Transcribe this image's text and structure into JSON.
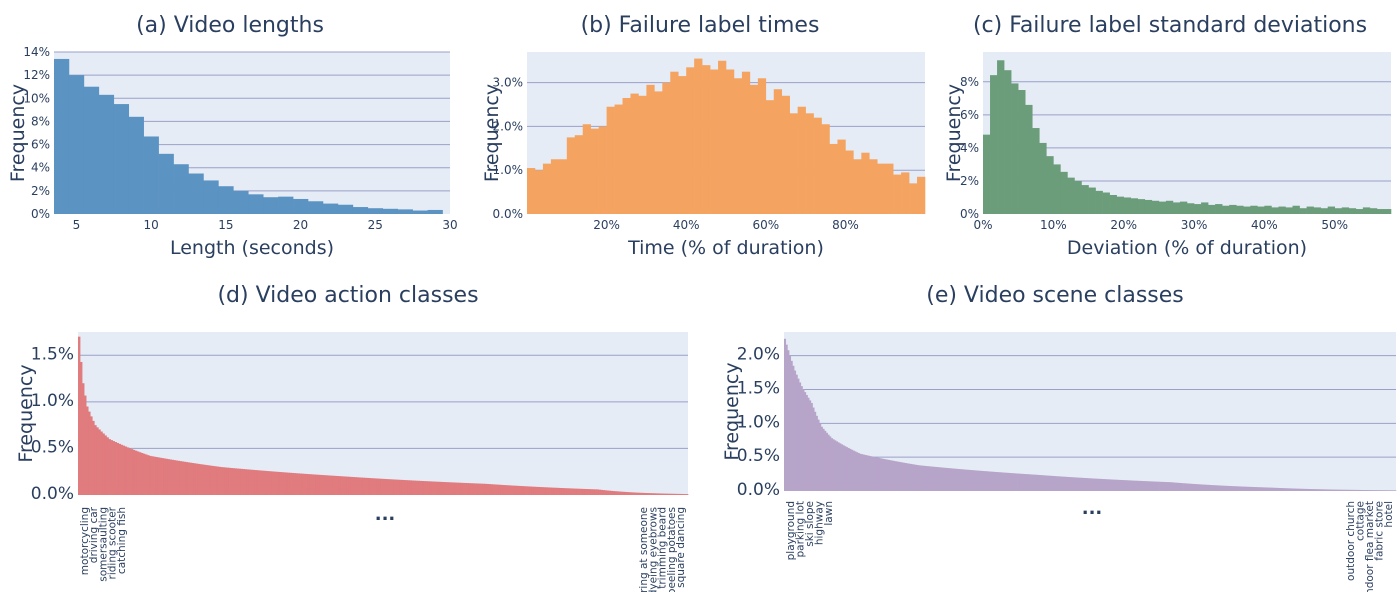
{
  "chart_data": [
    {
      "id": "a",
      "type": "bar",
      "title": "(a) Video lengths",
      "xlabel": "Length (seconds)",
      "ylabel": "Frequency",
      "xlim": [
        3.5,
        30
      ],
      "ylim": [
        0,
        14
      ],
      "xticks": [
        5,
        10,
        15,
        20,
        25,
        30
      ],
      "yticks": [
        0,
        2,
        4,
        6,
        8,
        10,
        12,
        14
      ],
      "ytick_suffix": "%",
      "color": "#5b93c3",
      "bin_start": 3.5,
      "bin_width": 1,
      "values": [
        13.4,
        12.0,
        11.0,
        10.3,
        9.5,
        8.4,
        6.7,
        5.2,
        4.3,
        3.5,
        2.9,
        2.4,
        2.0,
        1.7,
        1.45,
        1.5,
        1.3,
        1.1,
        0.9,
        0.8,
        0.6,
        0.5,
        0.45,
        0.4,
        0.3,
        0.35
      ]
    },
    {
      "id": "b",
      "type": "bar",
      "title": "(b) Failure label times",
      "xlabel": "Time (% of duration)",
      "ylabel": "Frequency",
      "xlim": [
        0,
        100
      ],
      "ylim": [
        0,
        3.7
      ],
      "xticks": [
        20,
        40,
        60,
        80
      ],
      "xtick_suffix": "%",
      "yticks": [
        0,
        1,
        2,
        3
      ],
      "ytick_suffix": "%",
      "ytick_decimals": 1,
      "color": "#f4a460",
      "bin_start": 0,
      "bin_width": 2,
      "values": [
        1.05,
        1.0,
        1.15,
        1.25,
        1.25,
        1.75,
        1.8,
        2.05,
        1.95,
        2.0,
        2.45,
        2.5,
        2.65,
        2.75,
        2.7,
        2.95,
        2.8,
        3.0,
        3.25,
        3.15,
        3.35,
        3.55,
        3.4,
        3.3,
        3.5,
        3.3,
        3.1,
        3.25,
        2.95,
        3.1,
        2.6,
        2.85,
        2.7,
        2.3,
        2.45,
        2.3,
        2.2,
        2.05,
        1.6,
        1.7,
        1.45,
        1.25,
        1.4,
        1.25,
        1.15,
        1.15,
        0.9,
        0.95,
        0.7,
        0.85
      ]
    },
    {
      "id": "c",
      "type": "bar",
      "title": "(c) Failure label standard deviations",
      "xlabel": "Deviation (% of duration)",
      "ylabel": "Frequency",
      "xlim": [
        0,
        58
      ],
      "ylim": [
        0,
        9.8
      ],
      "xticks": [
        0,
        10,
        20,
        30,
        40,
        50
      ],
      "xtick_suffix": "%",
      "yticks": [
        0,
        2,
        4,
        6,
        8
      ],
      "ytick_suffix": "%",
      "color": "#6b9d7a",
      "bin_start": 0,
      "bin_width": 1,
      "values": [
        4.8,
        8.4,
        9.3,
        8.7,
        7.9,
        7.5,
        6.6,
        5.2,
        4.3,
        3.5,
        3.0,
        2.55,
        2.2,
        2.0,
        1.75,
        1.6,
        1.4,
        1.3,
        1.15,
        1.05,
        1.0,
        0.95,
        0.9,
        0.85,
        0.8,
        0.75,
        0.8,
        0.7,
        0.75,
        0.65,
        0.6,
        0.7,
        0.55,
        0.6,
        0.5,
        0.55,
        0.5,
        0.45,
        0.5,
        0.45,
        0.5,
        0.4,
        0.45,
        0.4,
        0.5,
        0.35,
        0.45,
        0.4,
        0.35,
        0.45,
        0.35,
        0.4,
        0.35,
        0.3,
        0.4,
        0.35,
        0.3,
        0.3
      ]
    },
    {
      "id": "d",
      "type": "bar",
      "title": "(d) Video action classes",
      "ylabel": "Frequency",
      "ylim": [
        0,
        1.75
      ],
      "yticks": [
        0,
        0.5,
        1.0,
        1.5
      ],
      "ytick_suffix": "%",
      "ytick_decimals": 1,
      "color": "#e07b7e",
      "num_classes": 300,
      "max_value": 1.7,
      "curve": [
        [
          0,
          1.7
        ],
        [
          2,
          1.2
        ],
        [
          4,
          0.95
        ],
        [
          8,
          0.75
        ],
        [
          15,
          0.6
        ],
        [
          35,
          0.42
        ],
        [
          70,
          0.3
        ],
        [
          130,
          0.2
        ],
        [
          200,
          0.12
        ],
        [
          255,
          0.06
        ],
        [
          275,
          0.025
        ],
        [
          299,
          0.01
        ]
      ],
      "labels_left": [
        "motorcycling",
        "driving car",
        "somersaulting",
        "riding scooter",
        "catching fish"
      ],
      "labels_right": [
        "staring at someone",
        "dyeing eyebrows",
        "trimming beard",
        "peeling potatoes",
        "square dancing"
      ],
      "ellipsis": "..."
    },
    {
      "id": "e",
      "type": "bar",
      "title": "(e) Video scene classes",
      "ylabel": "Frequency",
      "ylim": [
        0,
        2.35
      ],
      "yticks": [
        0,
        0.5,
        1.0,
        1.5,
        2.0
      ],
      "ytick_suffix": "%",
      "ytick_decimals": 1,
      "color": "#b7a4c9",
      "num_classes": 365,
      "max_value": 2.25,
      "curve": [
        [
          0,
          2.25
        ],
        [
          3,
          2.0
        ],
        [
          6,
          1.78
        ],
        [
          10,
          1.55
        ],
        [
          16,
          1.3
        ],
        [
          22,
          0.95
        ],
        [
          28,
          0.78
        ],
        [
          45,
          0.55
        ],
        [
          80,
          0.38
        ],
        [
          150,
          0.24
        ],
        [
          230,
          0.13
        ],
        [
          290,
          0.05
        ],
        [
          330,
          0.02
        ],
        [
          364,
          0.01
        ]
      ],
      "labels_left": [
        "playground",
        "parking lot",
        "ski slope",
        "highway",
        "lawn"
      ],
      "labels_right": [
        "outdoor church",
        "cottage",
        "indoor flea market",
        "fabric store",
        "hotel"
      ],
      "ellipsis": "..."
    }
  ]
}
